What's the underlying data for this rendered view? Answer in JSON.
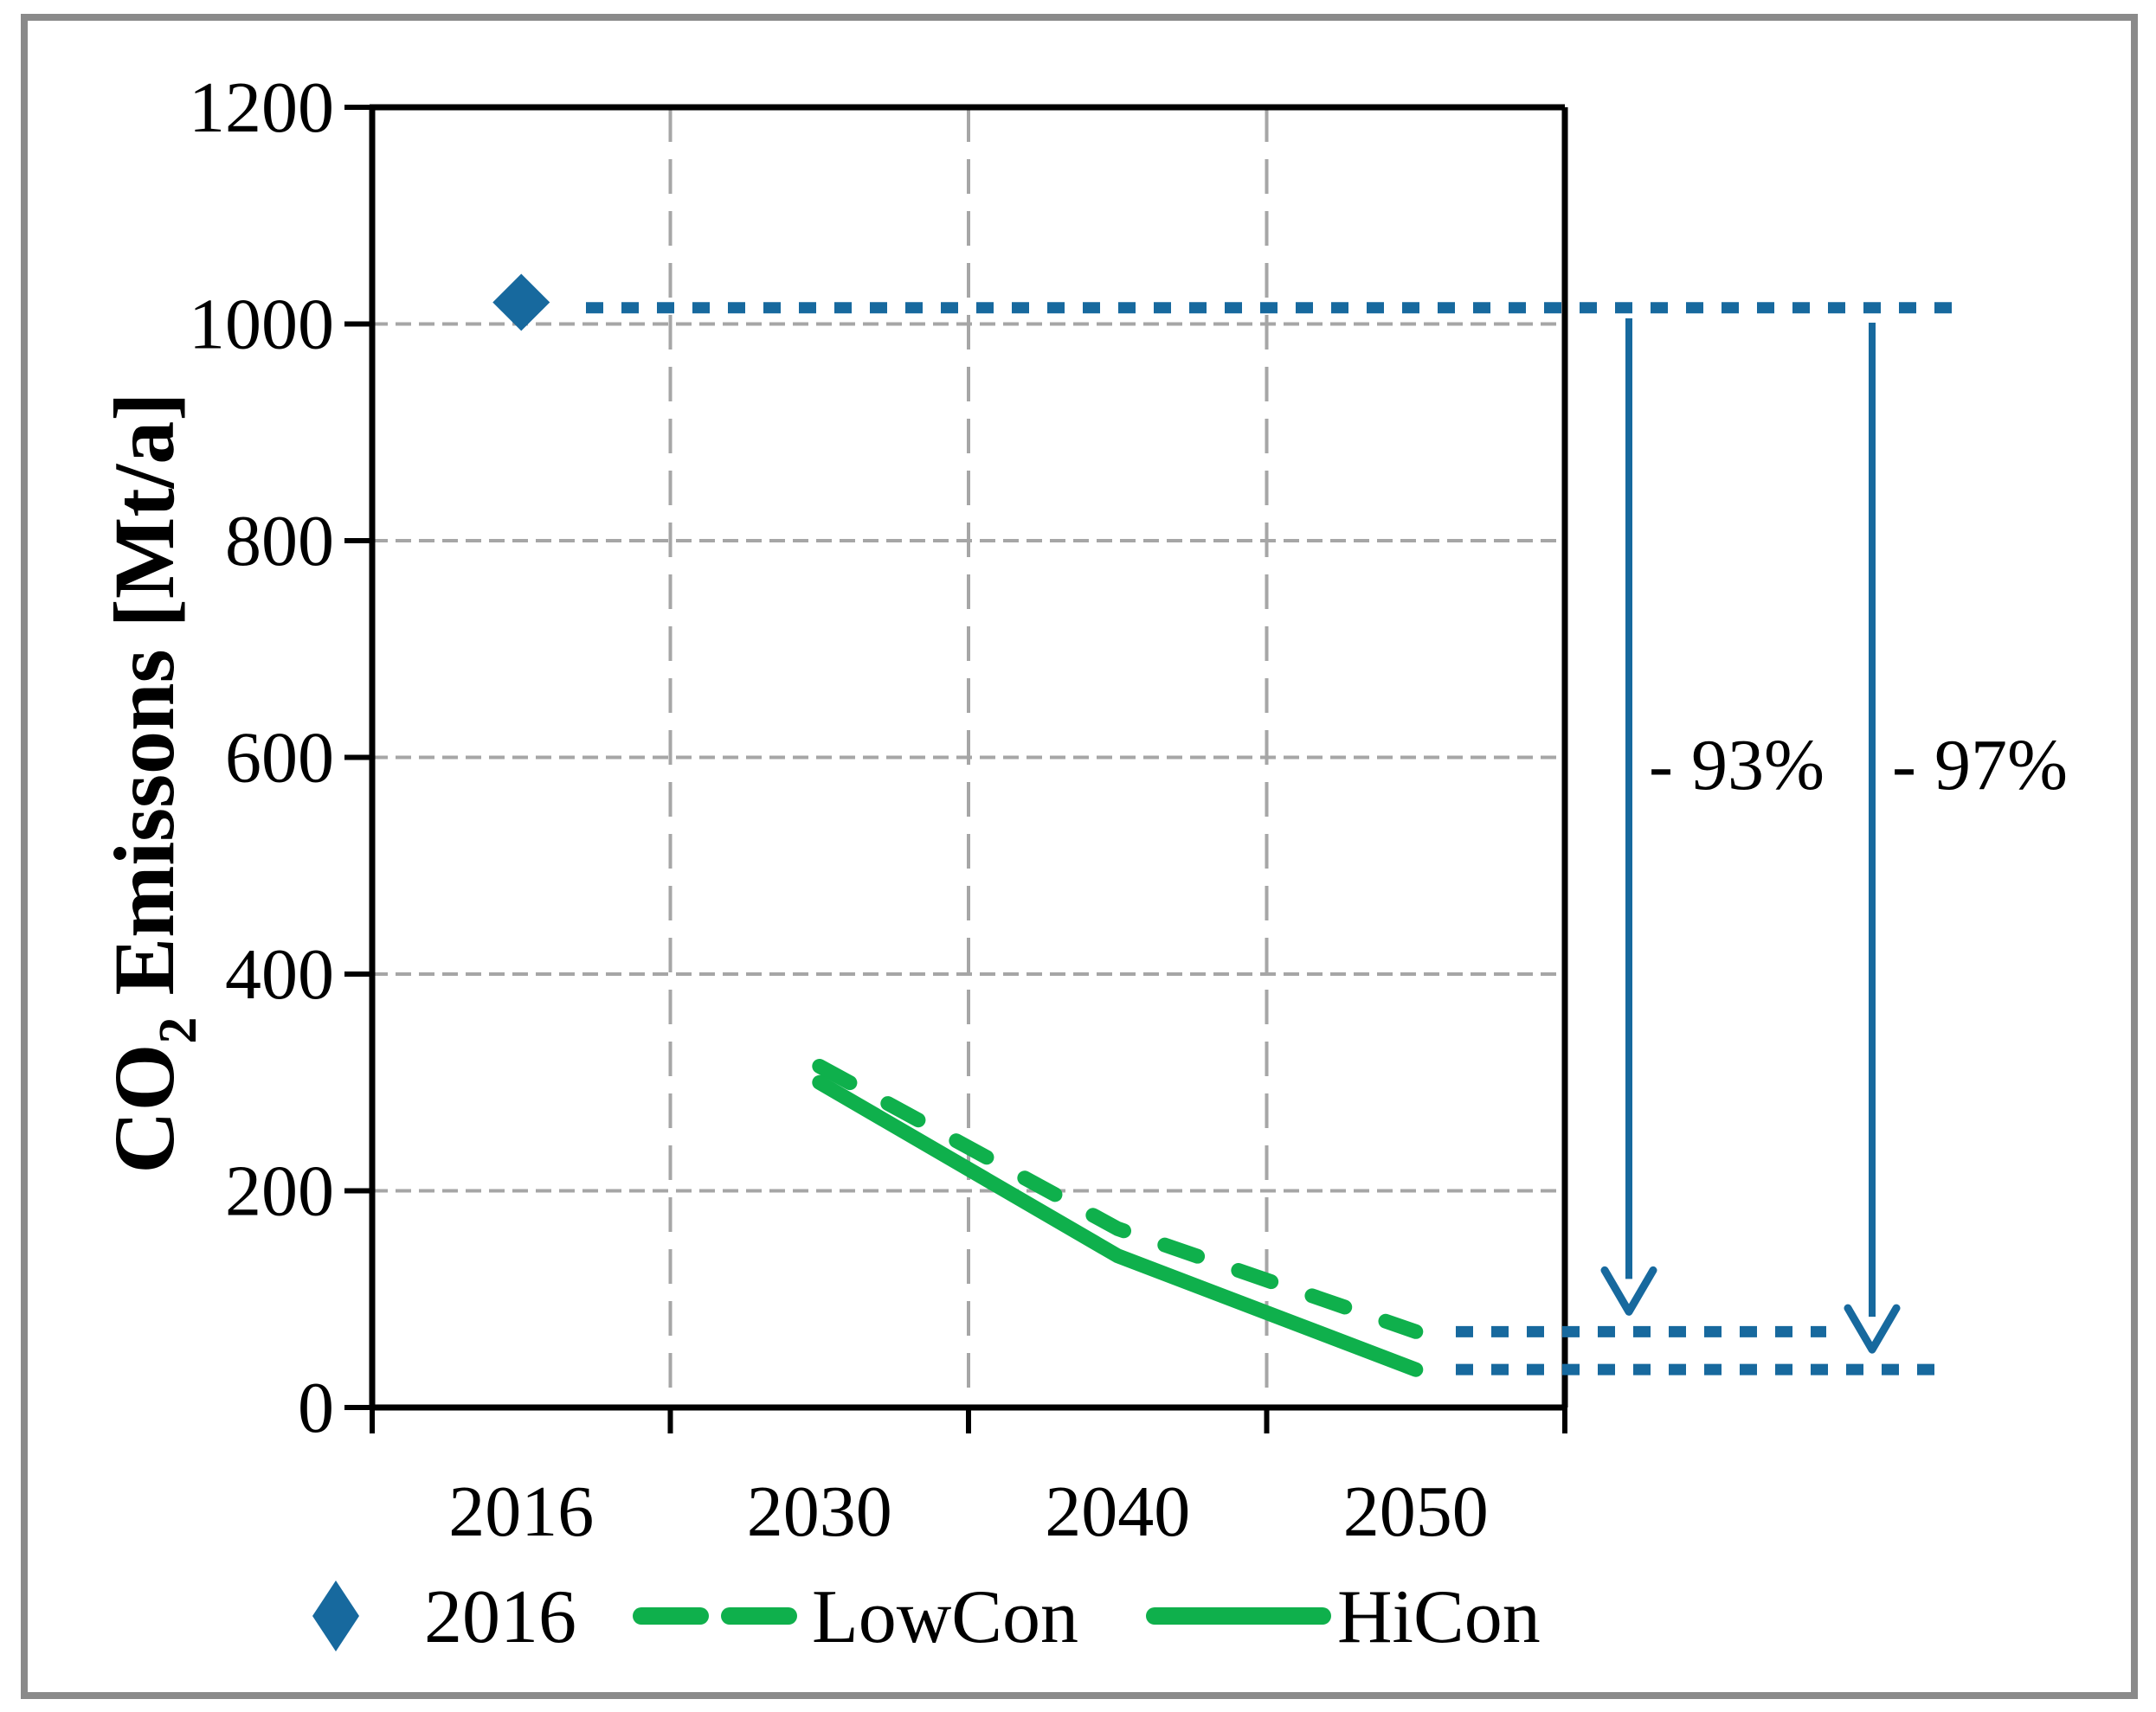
{
  "colors": {
    "blue": "#17699E",
    "green": "#0FB04C",
    "grid_gray": "#A6A6A6",
    "axis_black": "#000000",
    "frame_gray": "#8A8A8A",
    "background": "#FFFFFF"
  },
  "chart_data": {
    "type": "line",
    "title": "",
    "categories": [
      "2016",
      "2030",
      "2040",
      "2050"
    ],
    "y_axis": {
      "min": 0,
      "max": 1200,
      "step": 200,
      "tick_labels": [
        "0",
        "200",
        "400",
        "600",
        "800",
        "1000",
        "1200"
      ],
      "grid": true
    },
    "ylabel": {
      "pre": "CO",
      "sub": "2",
      "post": " Emissons [Mt/a]"
    },
    "series": [
      {
        "name": "2016",
        "type": "scatter",
        "marker": "diamond",
        "color_key": "blue",
        "values": [
          1020,
          null,
          null,
          null
        ]
      },
      {
        "name": "LowCon",
        "type": "line",
        "dash": "dashed",
        "color_key": "green",
        "values": [
          null,
          315,
          165,
          70
        ]
      },
      {
        "name": "HiCon",
        "type": "line",
        "dash": "solid",
        "color_key": "green",
        "values": [
          null,
          300,
          140,
          35
        ]
      }
    ],
    "reference_lines": [
      {
        "name": "level-2016",
        "value": 1015
      },
      {
        "name": "level-lowcon-2050",
        "value": 70
      },
      {
        "name": "level-hicon-2050",
        "value": 35
      }
    ],
    "arrows": [
      {
        "label": "- 93%",
        "from_value": 1015,
        "to_value": 70
      },
      {
        "label": "- 97%",
        "from_value": 1015,
        "to_value": 35
      }
    ],
    "legend": {
      "position": "bottom",
      "items": [
        {
          "label": "2016",
          "marker": "diamond"
        },
        {
          "label": "LowCon",
          "marker": "dashed-line"
        },
        {
          "label": "HiCon",
          "marker": "solid-line"
        }
      ]
    }
  }
}
